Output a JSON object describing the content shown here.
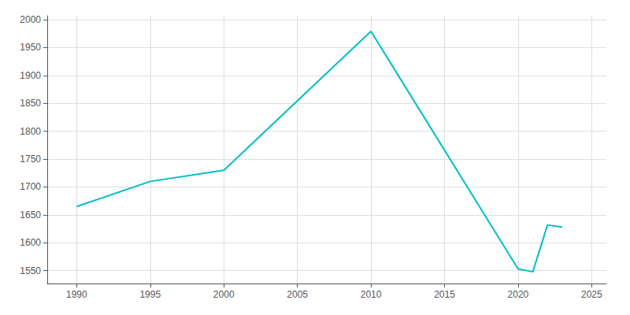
{
  "chart_data": {
    "type": "line",
    "x": [
      1990,
      1995,
      2000,
      2010,
      2020,
      2021,
      2022,
      2023
    ],
    "values": [
      1665,
      1710,
      1730,
      1979,
      1553,
      1548,
      1632,
      1628
    ],
    "color": "#00BFC4",
    "xlim": [
      1988,
      2026
    ],
    "xticks": [
      1990,
      1995,
      2000,
      2005,
      2010,
      2015,
      2020,
      2025
    ],
    "ylim": [
      1527,
      2007
    ],
    "yticks": [
      1550,
      1600,
      1650,
      1700,
      1750,
      1800,
      1850,
      1900,
      1950,
      2000
    ],
    "grid": true
  }
}
